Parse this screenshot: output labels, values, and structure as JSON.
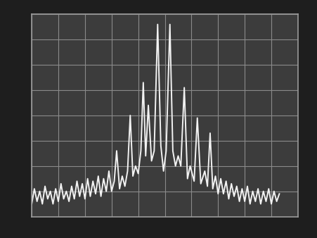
{
  "chart_data": {
    "type": "line",
    "x": [
      0.0,
      0.1,
      0.2,
      0.3,
      0.4,
      0.5,
      0.6,
      0.7,
      0.8,
      0.9,
      1.0,
      1.1,
      1.2,
      1.3,
      1.4,
      1.5,
      1.6,
      1.7,
      1.8,
      1.9,
      2.0,
      2.1,
      2.2,
      2.3,
      2.4,
      2.5,
      2.6,
      2.7,
      2.8,
      2.9,
      3.0,
      3.1,
      3.19,
      3.3,
      3.4,
      3.5,
      3.6,
      3.7,
      3.8,
      3.9,
      4.0,
      4.1,
      4.19,
      4.28,
      4.38,
      4.5,
      4.6,
      4.73,
      4.85,
      4.95,
      5.05,
      5.19,
      5.3,
      5.4,
      5.5,
      5.6,
      5.73,
      5.85,
      5.95,
      6.1,
      6.22,
      6.35,
      6.5,
      6.6,
      6.7,
      6.8,
      6.9,
      7.0,
      7.1,
      7.2,
      7.3,
      7.4,
      7.5,
      7.6,
      7.7,
      7.8,
      7.9,
      8.0,
      8.1,
      8.2,
      8.3,
      8.4,
      8.5,
      8.6,
      8.7,
      8.8,
      8.9,
      9.0,
      9.1,
      9.2,
      9.3
    ],
    "values": [
      0.5,
      1.1,
      0.6,
      1.0,
      0.5,
      1.2,
      0.7,
      1.0,
      0.5,
      1.1,
      0.6,
      1.3,
      0.7,
      1.0,
      0.6,
      1.2,
      0.7,
      1.4,
      0.8,
      1.3,
      0.7,
      1.5,
      0.8,
      1.4,
      0.9,
      1.6,
      0.8,
      1.5,
      1.0,
      1.8,
      1.0,
      1.4,
      2.6,
      1.1,
      1.6,
      1.2,
      1.8,
      4.0,
      1.6,
      2.0,
      1.7,
      2.6,
      5.3,
      2.4,
      4.4,
      2.2,
      2.6,
      7.6,
      2.8,
      1.8,
      2.6,
      7.6,
      2.6,
      2.0,
      2.4,
      2.0,
      5.1,
      1.5,
      2.0,
      1.4,
      3.9,
      1.3,
      1.8,
      1.2,
      3.3,
      1.1,
      1.6,
      0.9,
      1.5,
      0.9,
      1.4,
      0.7,
      1.3,
      0.8,
      1.2,
      0.6,
      1.1,
      0.6,
      1.2,
      0.5,
      1.0,
      0.6,
      1.1,
      0.5,
      1.0,
      0.6,
      1.1,
      0.5,
      1.0,
      0.6,
      0.9
    ],
    "color": "#f2f2f2",
    "xlim": [
      0,
      10
    ],
    "ylim": [
      0,
      8
    ],
    "xticks": [
      0,
      1,
      2,
      3,
      4,
      5,
      6,
      7,
      8,
      9,
      10
    ],
    "yticks": [
      0,
      1,
      2,
      3,
      4,
      5,
      6,
      7,
      8
    ],
    "grid": true,
    "tick_labels": false
  }
}
